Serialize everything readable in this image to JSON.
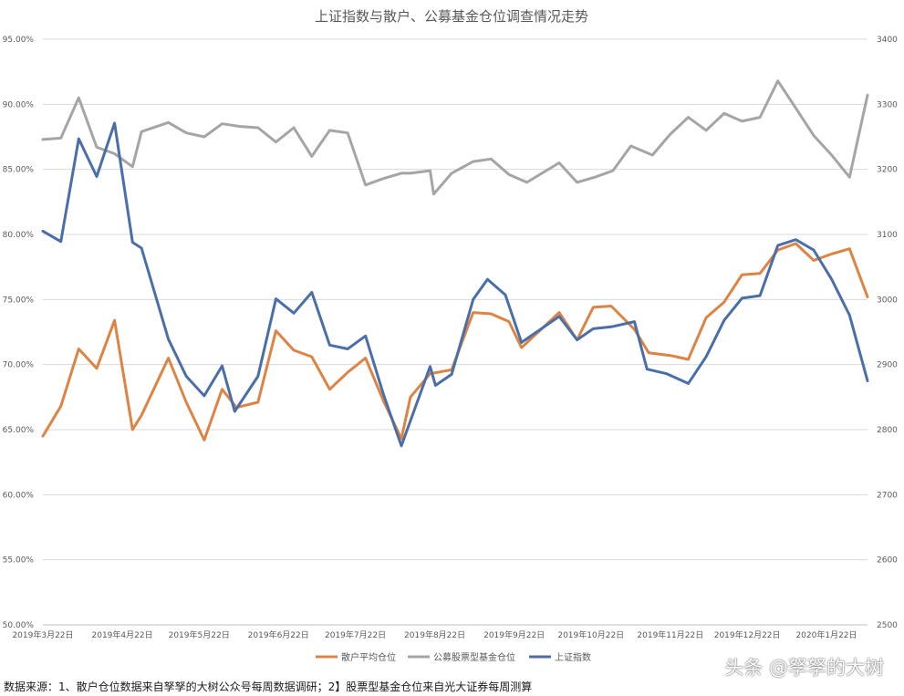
{
  "chart_data": {
    "type": "line",
    "title": "上证指数与散户、公募基金仓位调查情况走势",
    "y_left": {
      "ticks": [
        "50.00%",
        "55.00%",
        "60.00%",
        "65.00%",
        "70.00%",
        "75.00%",
        "80.00%",
        "85.00%",
        "90.00%",
        "95.00%"
      ],
      "range": [
        50,
        95
      ]
    },
    "y_right": {
      "ticks": [
        "2500",
        "2600",
        "2700",
        "2800",
        "2900",
        "3000",
        "3100",
        "3200",
        "3300",
        "3400"
      ],
      "range": [
        2500,
        3400
      ]
    },
    "x_ticks": [
      {
        "label": "2019年3月22日",
        "i": 0
      },
      {
        "label": "2019年4月22日",
        "i": 4.43
      },
      {
        "label": "2019年5月22日",
        "i": 8.71
      },
      {
        "label": "2019年6月22日",
        "i": 13.14
      },
      {
        "label": "2019年7月22日",
        "i": 17.43
      },
      {
        "label": "2019年8月22日",
        "i": 21.86
      },
      {
        "label": "2019年9月22日",
        "i": 26.29
      },
      {
        "label": "2019年10月22日",
        "i": 30.57
      },
      {
        "label": "2019年11月22日",
        "i": 35
      },
      {
        "label": "2019年12月22日",
        "i": 39.29
      },
      {
        "label": "2020年1月22日",
        "i": 43.71
      }
    ],
    "series": [
      {
        "name": "散户平均仓位",
        "color": "#dd8444",
        "axis": "left",
        "points": [
          [
            0,
            64.5
          ],
          [
            1,
            66.8
          ],
          [
            2,
            71.2
          ],
          [
            3,
            69.7
          ],
          [
            4,
            73.4
          ],
          [
            5,
            65.0
          ],
          [
            5.5,
            66.1
          ],
          [
            7,
            70.5
          ],
          [
            8,
            67.1
          ],
          [
            9,
            64.2
          ],
          [
            10,
            68.1
          ],
          [
            10.8,
            66.7
          ],
          [
            12,
            67.1
          ],
          [
            13,
            72.6
          ],
          [
            14,
            71.1
          ],
          [
            15,
            70.6
          ],
          [
            16,
            68.1
          ],
          [
            17,
            69.4
          ],
          [
            18,
            70.5
          ],
          [
            19,
            67.2
          ],
          [
            20,
            64.3
          ],
          [
            20.5,
            67.5
          ],
          [
            21.6,
            69.3
          ],
          [
            22.8,
            69.6
          ],
          [
            24,
            74.0
          ],
          [
            25,
            73.9
          ],
          [
            26,
            73.3
          ],
          [
            26.7,
            71.3
          ],
          [
            28.8,
            74.0
          ],
          [
            29.8,
            71.9
          ],
          [
            30.7,
            74.4
          ],
          [
            31.7,
            74.5
          ],
          [
            33,
            72.7
          ],
          [
            33.8,
            70.9
          ],
          [
            35,
            70.7
          ],
          [
            36,
            70.4
          ],
          [
            37,
            73.6
          ],
          [
            38,
            74.8
          ],
          [
            39,
            76.9
          ],
          [
            40,
            77.0
          ],
          [
            41,
            78.8
          ],
          [
            42,
            79.3
          ],
          [
            43,
            78.0
          ],
          [
            44,
            78.5
          ],
          [
            45,
            78.9
          ],
          [
            46,
            75.2
          ]
        ]
      },
      {
        "name": "公募股票型基金仓位",
        "color": "#a5a5a5",
        "axis": "left",
        "points": [
          [
            0,
            87.3
          ],
          [
            1,
            87.4
          ],
          [
            2,
            90.5
          ],
          [
            3,
            86.7
          ],
          [
            4,
            86.2
          ],
          [
            5,
            85.2
          ],
          [
            5.5,
            87.9
          ],
          [
            7,
            88.6
          ],
          [
            8,
            87.8
          ],
          [
            9,
            87.5
          ],
          [
            10,
            88.5
          ],
          [
            11,
            88.3
          ],
          [
            12,
            88.2
          ],
          [
            13,
            87.1
          ],
          [
            14,
            88.2
          ],
          [
            15,
            86.0
          ],
          [
            16,
            88.0
          ],
          [
            17,
            87.8
          ],
          [
            18,
            83.8
          ],
          [
            19,
            84.3
          ],
          [
            20,
            84.7
          ],
          [
            20.5,
            84.7
          ],
          [
            21.6,
            84.9
          ],
          [
            21.8,
            83.1
          ],
          [
            22.8,
            84.7
          ],
          [
            24,
            85.6
          ],
          [
            25,
            85.8
          ],
          [
            26,
            84.6
          ],
          [
            27,
            84.0
          ],
          [
            28.8,
            85.5
          ],
          [
            29.8,
            84.0
          ],
          [
            30.8,
            84.4
          ],
          [
            31.8,
            84.9
          ],
          [
            32.8,
            86.8
          ],
          [
            34,
            86.1
          ],
          [
            35,
            87.7
          ],
          [
            36,
            89.0
          ],
          [
            37,
            88.0
          ],
          [
            38,
            89.3
          ],
          [
            39,
            88.7
          ],
          [
            40,
            89.0
          ],
          [
            41,
            91.8
          ],
          [
            42,
            89.7
          ],
          [
            43,
            87.6
          ],
          [
            44,
            86.1
          ],
          [
            45,
            84.4
          ],
          [
            46,
            90.7
          ]
        ]
      },
      {
        "name": "上证指数",
        "color": "#4a6fa8",
        "axis": "right",
        "points": [
          [
            0,
            3105
          ],
          [
            1,
            3089
          ],
          [
            2,
            3247
          ],
          [
            3,
            3189
          ],
          [
            4,
            3271
          ],
          [
            5,
            3088
          ],
          [
            5.5,
            3079
          ],
          [
            7,
            2939
          ],
          [
            8,
            2882
          ],
          [
            9,
            2852
          ],
          [
            10,
            2898
          ],
          [
            10.7,
            2828
          ],
          [
            12,
            2882
          ],
          [
            13,
            3001
          ],
          [
            14,
            2979
          ],
          [
            15,
            3011
          ],
          [
            16,
            2930
          ],
          [
            17,
            2924
          ],
          [
            18,
            2944
          ],
          [
            19,
            2854
          ],
          [
            20,
            2775
          ],
          [
            21.6,
            2897
          ],
          [
            21.9,
            2868
          ],
          [
            22.8,
            2885
          ],
          [
            24,
            3000
          ],
          [
            24.8,
            3031
          ],
          [
            25.8,
            3007
          ],
          [
            26.7,
            2934
          ],
          [
            28.8,
            2974
          ],
          [
            29.8,
            2938
          ],
          [
            30.7,
            2955
          ],
          [
            31.7,
            2958
          ],
          [
            33,
            2966
          ],
          [
            33.7,
            2893
          ],
          [
            34.8,
            2886
          ],
          [
            36,
            2871
          ],
          [
            37,
            2912
          ],
          [
            38,
            2968
          ],
          [
            39,
            3002
          ],
          [
            40,
            3006
          ],
          [
            41,
            3083
          ],
          [
            42,
            3092
          ],
          [
            43,
            3076
          ],
          [
            44,
            3031
          ],
          [
            45,
            2976
          ],
          [
            46,
            2875
          ]
        ]
      }
    ],
    "legend_position": "bottom",
    "grid": true
  },
  "footer": {
    "note": "数据来源：1、散户仓位数据来自孥孥的大树公众号每周数据调研；2】股票型基金仓位来自光大证券每周测算",
    "watermark": "头条 @孥孥的大树"
  }
}
